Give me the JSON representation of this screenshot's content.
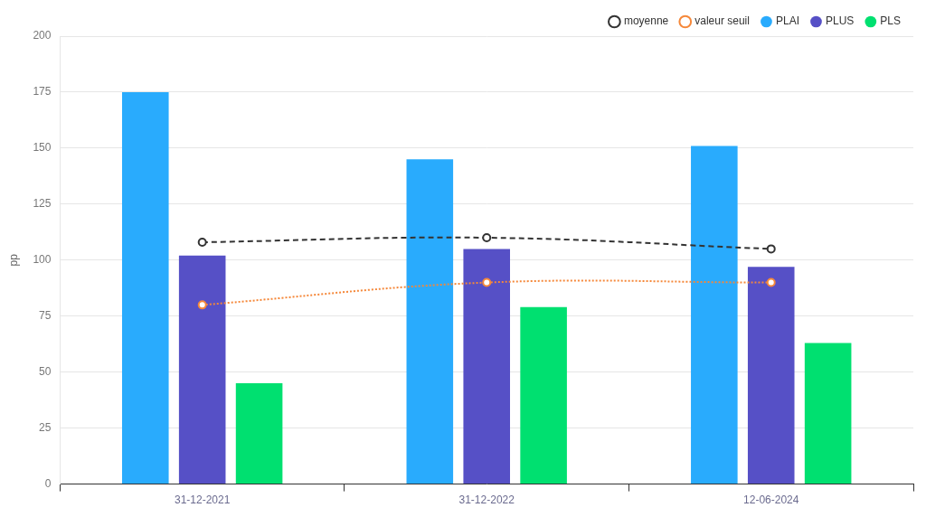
{
  "chart_data": {
    "type": "bar",
    "y_label": "pp",
    "categories": [
      "31-12-2021",
      "31-12-2022",
      "12-06-2024"
    ],
    "series": [
      {
        "name": "PLAI",
        "color": "#29abfd",
        "values": [
          175,
          145,
          151
        ]
      },
      {
        "name": "PLUS",
        "color": "#5650c6",
        "values": [
          102,
          105,
          97
        ]
      },
      {
        "name": "PLS",
        "color": "#00e070",
        "values": [
          45,
          79,
          63
        ]
      },
      {
        "name": "moyenne",
        "type": "line",
        "color": "#333333",
        "line_style": "dashed",
        "marker": "circle",
        "values": [
          108,
          110,
          105
        ]
      },
      {
        "name": "valeur seuil",
        "type": "line",
        "color": "#f5883a",
        "line_style": "dotted",
        "marker": "circle",
        "values": [
          80,
          90,
          90
        ]
      }
    ],
    "ylim": [
      0,
      200
    ],
    "yticks": [
      0,
      25,
      50,
      75,
      100,
      125,
      150,
      175,
      200
    ],
    "grid": true,
    "legend": "top-right"
  }
}
